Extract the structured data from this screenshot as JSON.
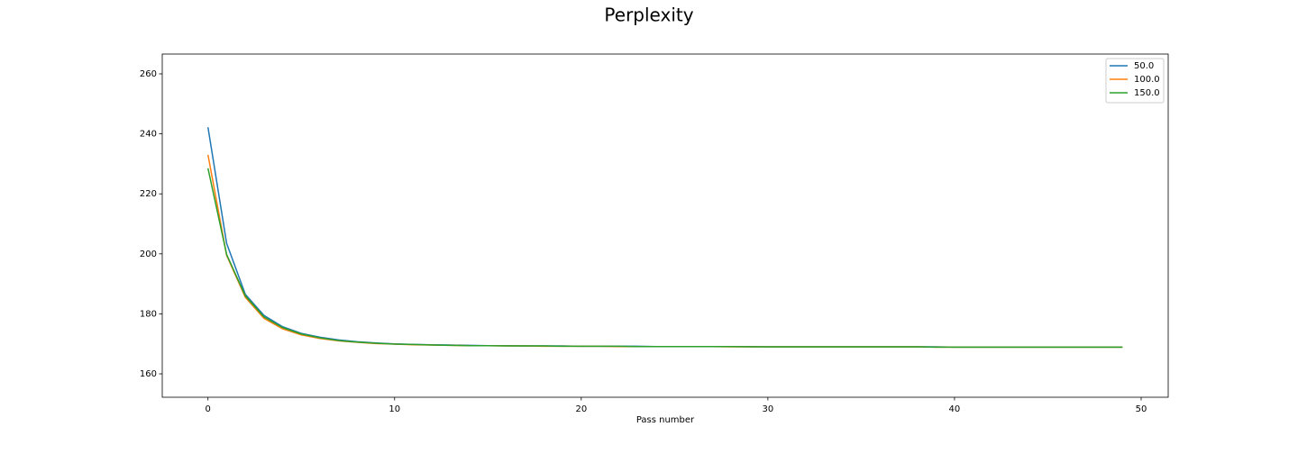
{
  "chart_data": {
    "type": "line",
    "title": "Perplexity",
    "xlabel": "Pass number",
    "x": [
      0,
      1,
      2,
      3,
      4,
      5,
      6,
      7,
      8,
      9,
      10,
      11,
      12,
      13,
      14,
      15,
      16,
      17,
      18,
      19,
      20,
      21,
      22,
      23,
      24,
      25,
      26,
      27,
      28,
      29,
      30,
      31,
      32,
      33,
      34,
      35,
      36,
      37,
      38,
      39,
      40,
      41,
      42,
      43,
      44,
      45,
      46,
      47,
      48,
      49
    ],
    "series": [
      {
        "name": "50.0",
        "color": "#1f77b4",
        "values": [
          242.2,
          203.5,
          186.5,
          179.5,
          175.7,
          173.5,
          172.2,
          171.3,
          170.7,
          170.3,
          170.0,
          169.8,
          169.7,
          169.6,
          169.5,
          169.4,
          169.4,
          169.3,
          169.3,
          169.3,
          169.2,
          169.2,
          169.2,
          169.2,
          169.1,
          169.1,
          169.1,
          169.1,
          169.1,
          169.1,
          169.0,
          169.0,
          169.0,
          169.0,
          169.0,
          169.0,
          169.0,
          169.0,
          169.0,
          169.0,
          168.9,
          168.9,
          168.9,
          168.9,
          168.9,
          168.9,
          168.9,
          168.9,
          168.9,
          168.9
        ]
      },
      {
        "name": "100.0",
        "color": "#ff7f0e",
        "values": [
          233.0,
          199.5,
          185.5,
          178.5,
          175.0,
          173.0,
          171.8,
          171.0,
          170.5,
          170.1,
          169.9,
          169.7,
          169.6,
          169.5,
          169.4,
          169.4,
          169.3,
          169.3,
          169.2,
          169.2,
          169.2,
          169.2,
          169.1,
          169.1,
          169.1,
          169.1,
          169.1,
          169.1,
          169.0,
          169.0,
          169.0,
          169.0,
          169.0,
          169.0,
          169.0,
          169.0,
          169.0,
          169.0,
          169.0,
          168.9,
          168.9,
          168.9,
          168.9,
          168.9,
          168.9,
          168.9,
          168.9,
          168.9,
          168.9,
          168.9
        ]
      },
      {
        "name": "150.0",
        "color": "#2ca02c",
        "values": [
          228.5,
          199.8,
          186.0,
          179.0,
          175.4,
          173.3,
          172.0,
          171.1,
          170.6,
          170.2,
          169.9,
          169.8,
          169.6,
          169.5,
          169.4,
          169.4,
          169.3,
          169.3,
          169.3,
          169.2,
          169.2,
          169.2,
          169.2,
          169.1,
          169.1,
          169.1,
          169.1,
          169.1,
          169.1,
          169.0,
          169.0,
          169.0,
          169.0,
          169.0,
          169.0,
          169.0,
          169.0,
          169.0,
          169.0,
          168.9,
          168.9,
          168.9,
          168.9,
          168.9,
          168.9,
          168.9,
          168.9,
          168.9,
          168.9,
          168.9
        ]
      }
    ],
    "xlim": [
      -2.45,
      51.45
    ],
    "xticks": [
      0,
      10,
      20,
      30,
      40,
      50
    ],
    "ylim": [
      152.2,
      266.6
    ],
    "yticks": [
      160,
      180,
      200,
      220,
      240,
      260
    ],
    "legend": "upper-right"
  }
}
